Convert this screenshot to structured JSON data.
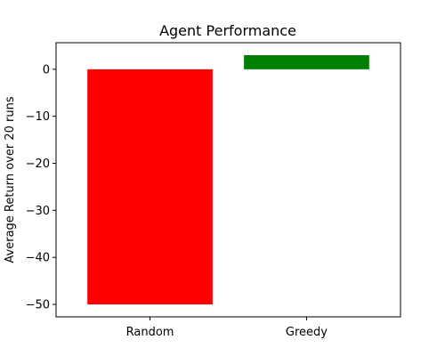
{
  "chart_data": {
    "type": "bar",
    "title": "Agent Performance",
    "xlabel": "",
    "ylabel": "Average Return over 20 runs",
    "categories": [
      "Random",
      "Greedy"
    ],
    "values": [
      -50,
      3
    ],
    "colors": [
      "#ff0000",
      "#008000"
    ],
    "ylim": [
      -52.65,
      5.65
    ],
    "yticks": [
      0,
      -10,
      -20,
      -30,
      -40,
      -50
    ],
    "ytick_labels": [
      "0",
      "−10",
      "−20",
      "−30",
      "−40",
      "−50"
    ],
    "grid": false,
    "legend": "none"
  }
}
